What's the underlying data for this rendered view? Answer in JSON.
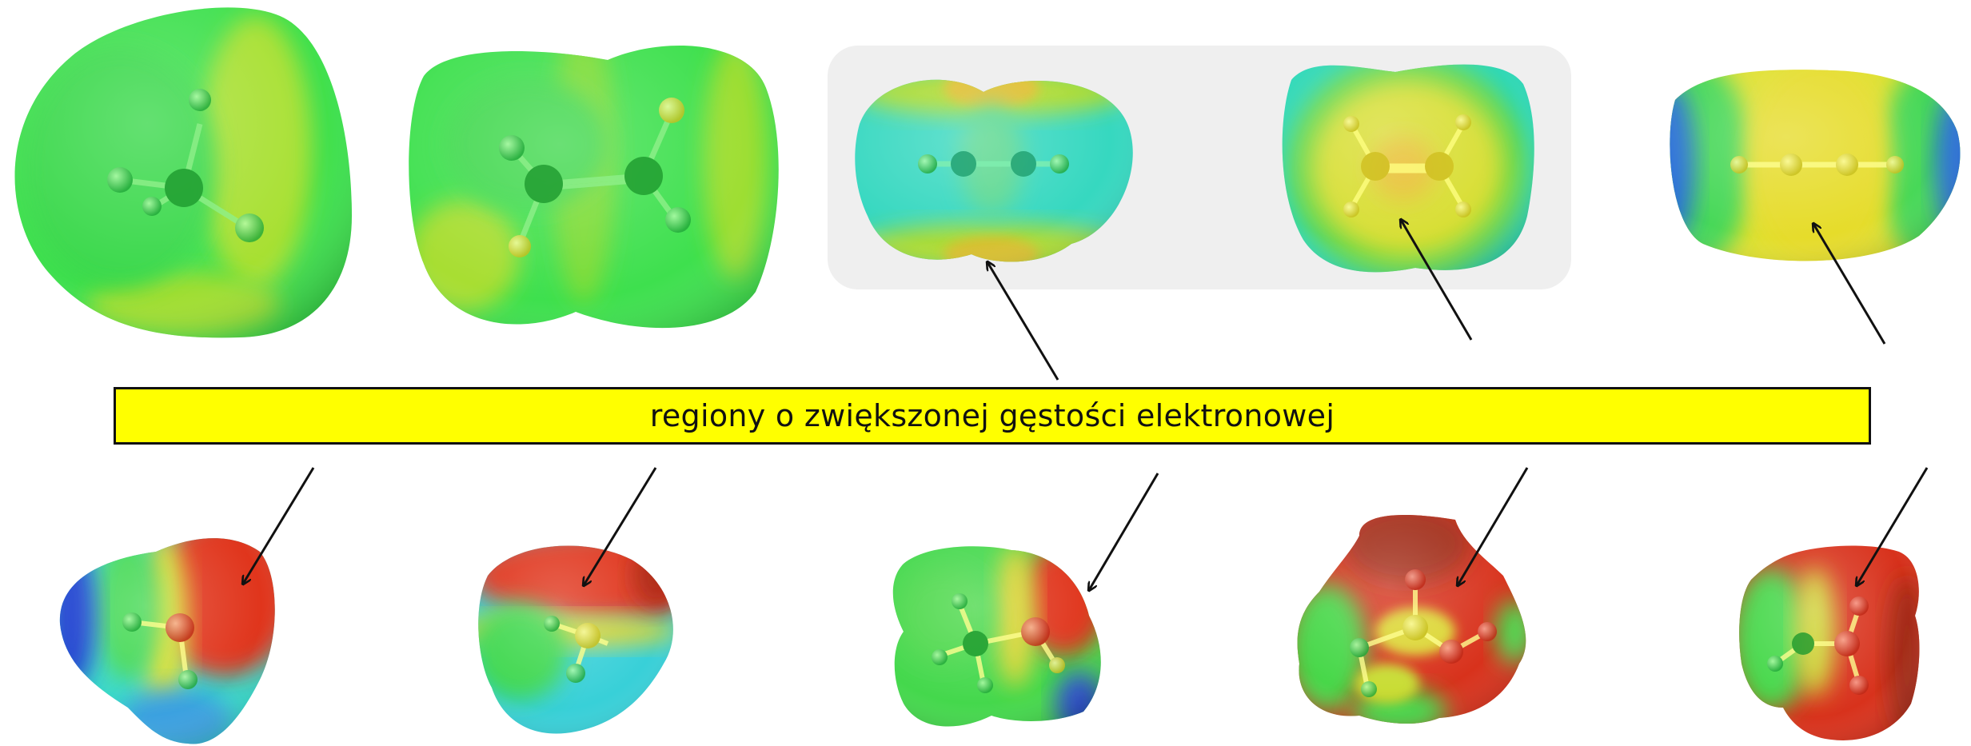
{
  "banner": {
    "text": "regiony o zwiększonej gęstości elektronowej",
    "background": "#ffff00"
  },
  "highlight_box_color": "#efefef",
  "esp_color_scale": [
    "#2a40c8",
    "#36c8e8",
    "#2fdd4a",
    "#e8e030",
    "#dd3a1e"
  ],
  "molecules": {
    "top": [
      "molecule-1",
      "molecule-2",
      "molecule-3",
      "molecule-4",
      "molecule-5"
    ],
    "bottom": [
      "molecule-6",
      "molecule-7",
      "molecule-8",
      "molecule-9",
      "molecule-10"
    ]
  }
}
